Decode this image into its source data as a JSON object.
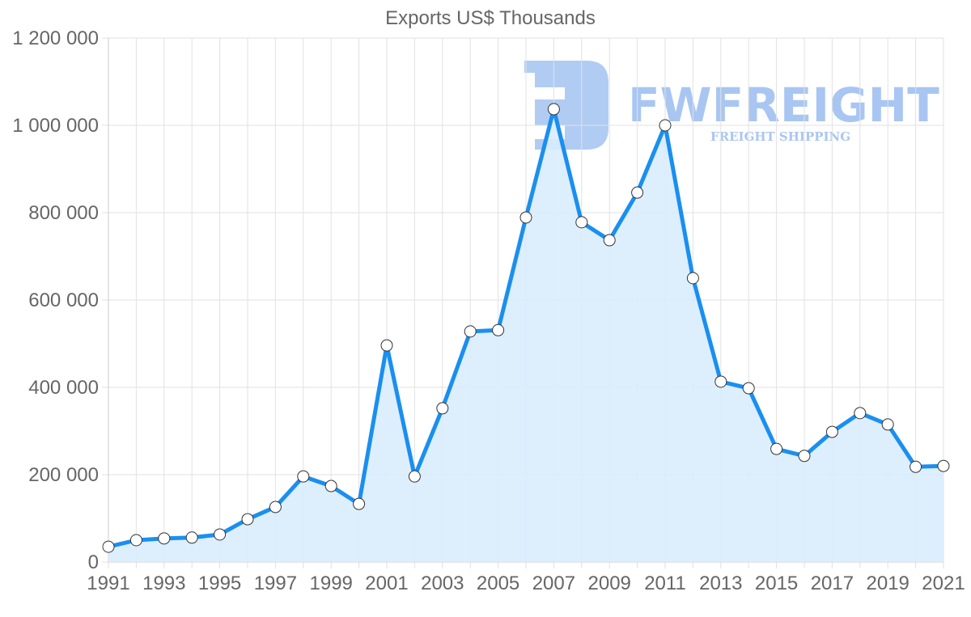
{
  "chart_data": {
    "type": "area",
    "title": "Exports US$ Thousands",
    "xlabel": "",
    "ylabel": "",
    "x": [
      1991,
      1992,
      1993,
      1994,
      1995,
      1996,
      1997,
      1998,
      1999,
      2000,
      2001,
      2002,
      2003,
      2004,
      2005,
      2006,
      2007,
      2008,
      2009,
      2010,
      2011,
      2012,
      2013,
      2014,
      2015,
      2016,
      2017,
      2018,
      2019,
      2020,
      2021
    ],
    "series": [
      {
        "name": "Exports US$ Thousands",
        "values": [
          35000,
          50000,
          54000,
          56000,
          63000,
          98000,
          126000,
          196000,
          174000,
          133000,
          496000,
          196000,
          352000,
          528000,
          531000,
          789000,
          1037000,
          778000,
          737000,
          846000,
          1000000,
          650000,
          413000,
          398000,
          259000,
          243000,
          298000,
          341000,
          315000,
          218000,
          220000
        ]
      }
    ],
    "ylim": [
      0,
      1200000
    ],
    "yticks": [
      0,
      200000,
      400000,
      600000,
      800000,
      1000000,
      1200000
    ],
    "ytick_labels": [
      "0",
      "200 000",
      "400 000",
      "600 000",
      "800 000",
      "1 000 000",
      "1 200 000"
    ],
    "xtick_labels": [
      "1991",
      "1993",
      "1995",
      "1997",
      "1999",
      "2001",
      "2003",
      "2005",
      "2007",
      "2009",
      "2011",
      "2013",
      "2015",
      "2017",
      "2019",
      "2021"
    ],
    "grid": true,
    "legend": "none",
    "colors": {
      "line": "#1a8ff0",
      "fill": "#d9ecfd",
      "point_fill": "#ffffff",
      "point_stroke": "#333333",
      "grid": "#e2e2e2",
      "text": "#666666"
    }
  },
  "watermark": {
    "brand": "FWFREIGHT",
    "tagline": "FREIGHT SHIPPING",
    "color": "#a9c6f2"
  }
}
